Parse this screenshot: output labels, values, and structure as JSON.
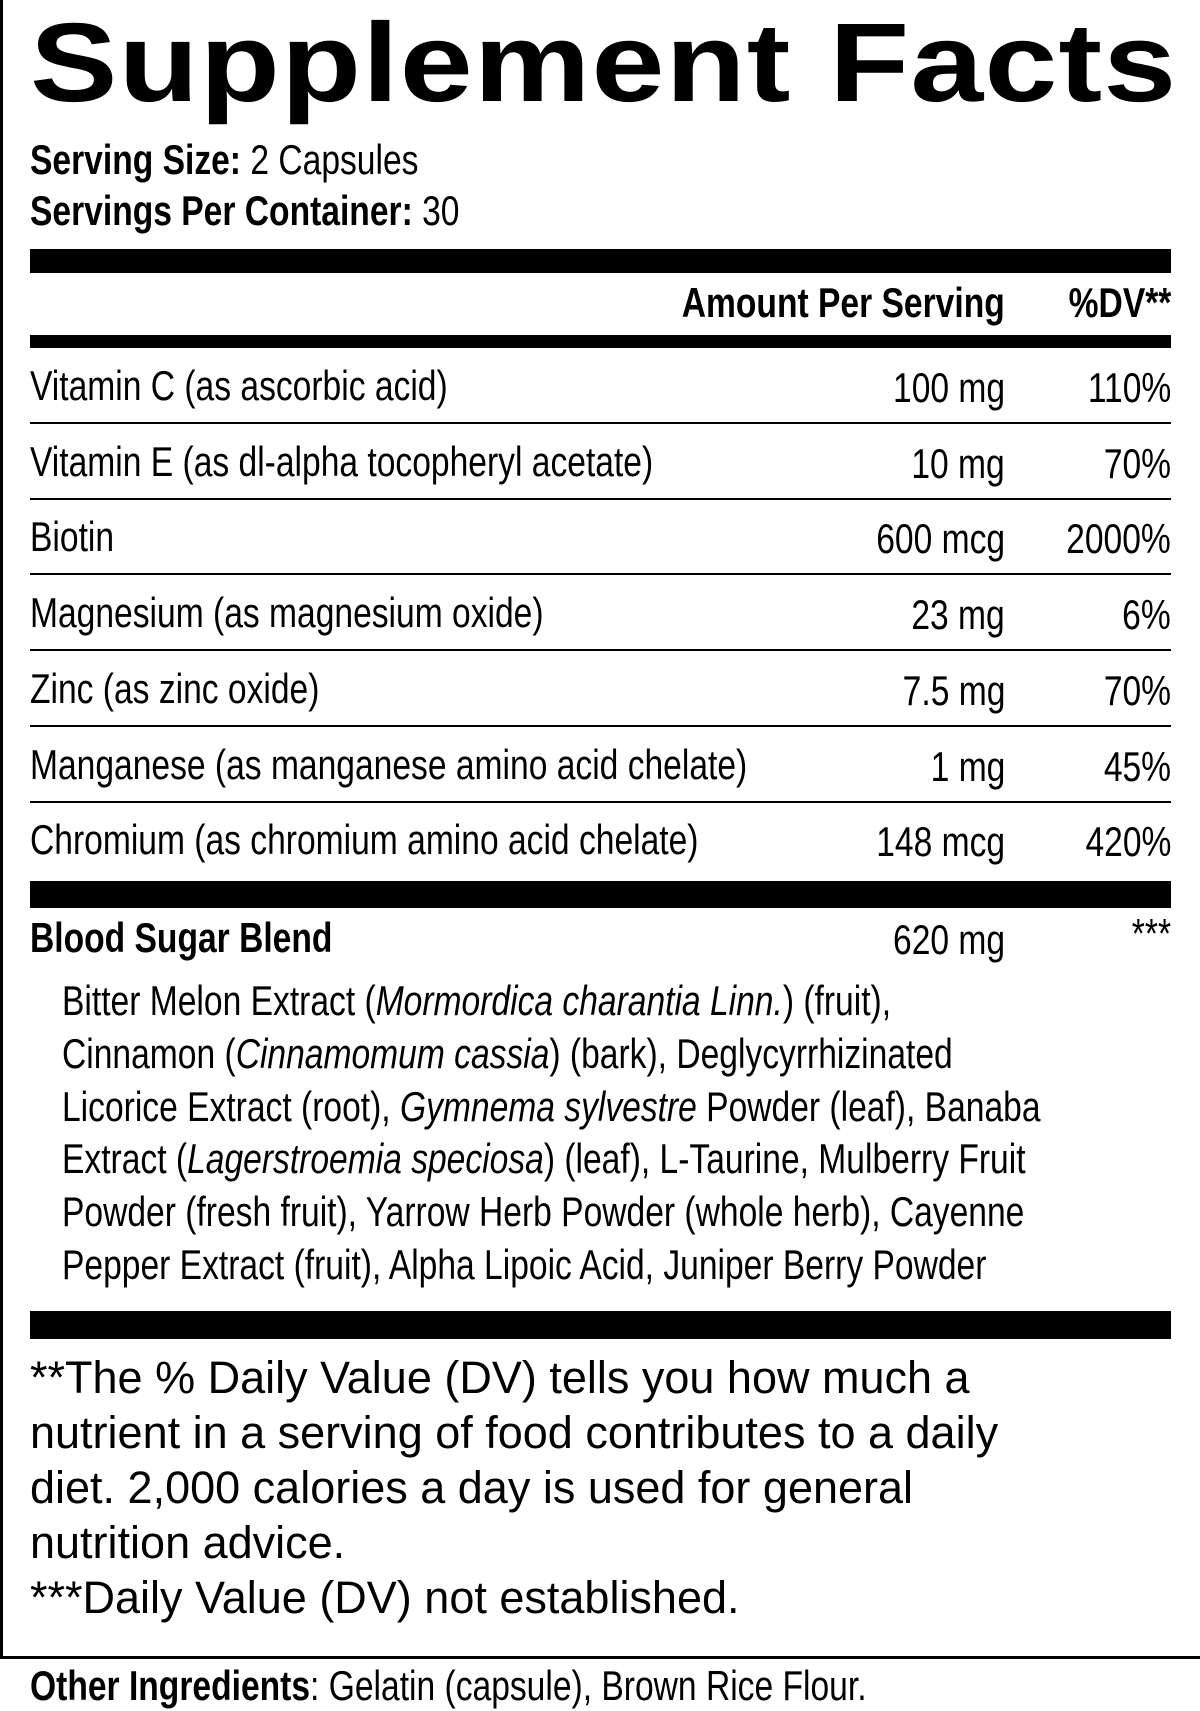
{
  "title": "Supplement Facts",
  "serving_size": {
    "label": "Serving Size:",
    "value": "2 Capsules"
  },
  "servings_per_container": {
    "label": "Servings Per Container:",
    "value": "30"
  },
  "header": {
    "amount": "Amount Per Serving",
    "dv": "%DV**"
  },
  "nutrients": [
    {
      "name": "Vitamin C (as ascorbic acid)",
      "amount": "100 mg",
      "dv": "110%"
    },
    {
      "name": "Vitamin E (as dl-alpha tocopheryl acetate)",
      "amount": "10 mg",
      "dv": "70%"
    },
    {
      "name": "Biotin",
      "amount": "600 mcg",
      "dv": "2000%"
    },
    {
      "name": "Magnesium (as magnesium oxide)",
      "amount": "23 mg",
      "dv": "6%"
    },
    {
      "name": "Zinc (as zinc oxide)",
      "amount": "7.5 mg",
      "dv": "70%"
    },
    {
      "name": "Manganese (as manganese amino acid chelate)",
      "amount": "1 mg",
      "dv": "45%"
    },
    {
      "name": "Chromium (as chromium amino acid chelate)",
      "amount": "148 mcg",
      "dv": "420%"
    }
  ],
  "blend": {
    "name": "Blood Sugar Blend",
    "amount": "620 mg",
    "dv": "***",
    "ingredient_lines": [
      [
        {
          "t": "Bitter Melon Extract ("
        },
        {
          "t": "Mormordica charantia Linn.",
          "i": true
        },
        {
          "t": ") (fruit),"
        }
      ],
      [
        {
          "t": "Cinnamon ("
        },
        {
          "t": "Cinnamomum cassia",
          "i": true
        },
        {
          "t": ") (bark), Deglycyrrhizinated"
        }
      ],
      [
        {
          "t": "Licorice Extract (root), "
        },
        {
          "t": "Gymnema sylvestre",
          "i": true
        },
        {
          "t": " Powder (leaf), Banaba"
        }
      ],
      [
        {
          "t": "Extract ("
        },
        {
          "t": "Lagerstroemia speciosa",
          "i": true
        },
        {
          "t": ") (leaf), L-Taurine, Mulberry Fruit"
        }
      ],
      [
        {
          "t": "Powder (fresh fruit), Yarrow Herb Powder (whole herb), Cayenne"
        }
      ],
      [
        {
          "t": "Pepper Extract (fruit), Alpha Lipoic Acid, Juniper Berry Powder"
        }
      ]
    ]
  },
  "footnotes": [
    "**The % Daily Value (DV) tells you how much a",
    "nutrient in a serving of food contributes to a daily",
    "diet. 2,000 calories a day is used for general",
    "nutrition advice.",
    "***Daily Value (DV) not established."
  ],
  "other_ingredients": {
    "label": "Other Ingredients",
    "value": ": Gelatin (capsule), Brown Rice Flour."
  }
}
